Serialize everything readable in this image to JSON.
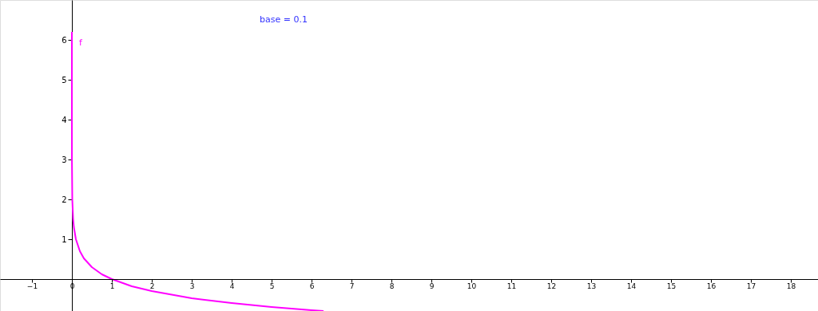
{
  "chart_data": {
    "type": "line",
    "x": [
      6e-07,
      1e-06,
      1e-05,
      0.0001,
      0.001,
      0.01,
      0.03,
      0.05,
      0.1,
      0.2,
      0.3,
      0.5,
      0.75,
      1,
      1.5,
      2,
      3,
      4,
      5,
      6,
      6.3
    ],
    "series": [
      {
        "name": "f",
        "color": "#ff00ff",
        "values": [
          6.2,
          6,
          5,
          4,
          3,
          2,
          1.52,
          1.3,
          1,
          0.7,
          0.52,
          0.3,
          0.12,
          0,
          -0.18,
          -0.3,
          -0.48,
          -0.6,
          -0.7,
          -0.78,
          -0.8
        ]
      }
    ],
    "annotations": [
      "base = 0.1"
    ],
    "xlim": [
      -1.8,
      18.68
    ],
    "ylim": [
      -0.8,
      7
    ],
    "xticks": [
      -1,
      0,
      1,
      2,
      3,
      4,
      5,
      6,
      7,
      8,
      9,
      10,
      11,
      12,
      13,
      14,
      15,
      16,
      17,
      18
    ],
    "yticks": [
      1,
      2,
      3,
      4,
      5,
      6
    ],
    "grid": false,
    "legend": false,
    "marker": "none",
    "line_style": "solid"
  }
}
